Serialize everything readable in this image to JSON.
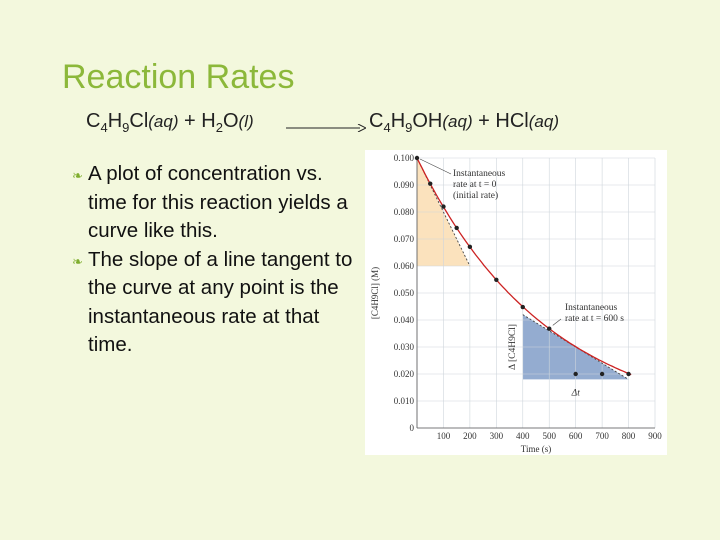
{
  "slide": {
    "title": "Reaction Rates",
    "equation": {
      "reactant1": {
        "c": "C",
        "n1": "4",
        "h": "H",
        "n2": "9",
        "rest": "Cl",
        "state": "(aq)"
      },
      "plus1": " + ",
      "reactant2": {
        "h": "H",
        "n": "2",
        "o": "O",
        "state": "(l)"
      },
      "product1": {
        "c": "C",
        "n1": "4",
        "h": "H",
        "n2": "9",
        "rest": "OH",
        "state": "(aq)"
      },
      "plus2": " + ",
      "product2": {
        "name": "HCl",
        "state": "(aq)"
      }
    },
    "bullets": [
      "A plot of concentration vs. time for this reaction yields a curve like this.",
      "The slope of a line tangent to the curve at any point is the instantaneous rate at that time."
    ]
  },
  "chart_data": {
    "type": "line",
    "xlabel": "Time (s)",
    "ylabel": "[C4H9Cl] (M)",
    "xlim": [
      0,
      900
    ],
    "ylim": [
      0,
      0.1
    ],
    "x_ticks": [
      "0",
      "100",
      "200",
      "300",
      "400",
      "500",
      "600",
      "700",
      "800",
      "900"
    ],
    "y_ticks": [
      "0.100",
      "0.090",
      "0.080",
      "0.070",
      "0.060",
      "0.050",
      "0.040",
      "0.030",
      "0.020",
      "0.010",
      "0"
    ],
    "series": [
      {
        "x": [
          0,
          50,
          100,
          150,
          200,
          300,
          400,
          500,
          600,
          700,
          800
        ],
        "values": [
          0.1,
          0.0905,
          0.082,
          0.0741,
          0.0671,
          0.0549,
          0.0448,
          0.0368,
          0.02,
          0.02,
          0.02
        ]
      }
    ],
    "points": {
      "x": [
        0,
        50,
        100,
        150,
        200,
        300,
        400,
        500,
        600,
        700,
        800
      ],
      "y": [
        0.1,
        0.0905,
        0.082,
        0.0741,
        0.0671,
        0.0549,
        0.0448,
        0.0368,
        0.02,
        0.02,
        0.02
      ]
    },
    "curve_color": "#cc2222",
    "tangent_initial": {
      "x": [
        0,
        200
      ],
      "y": [
        0.1,
        0.06
      ]
    },
    "tangent_600": {
      "x": [
        400,
        800
      ],
      "y": [
        0.042,
        0.018
      ]
    },
    "annotations": {
      "initial_rate": [
        "Instantaneous",
        "rate at t = 0",
        "(initial rate)"
      ],
      "rate_600": [
        "Instantaneous",
        "rate at t = 600 s"
      ],
      "delta_conc": "Δ [C4H9Cl]",
      "delta_t": "Δt"
    },
    "fill_colors": {
      "initial": "#fbe2bd",
      "rate_600": "#94acd0"
    }
  }
}
